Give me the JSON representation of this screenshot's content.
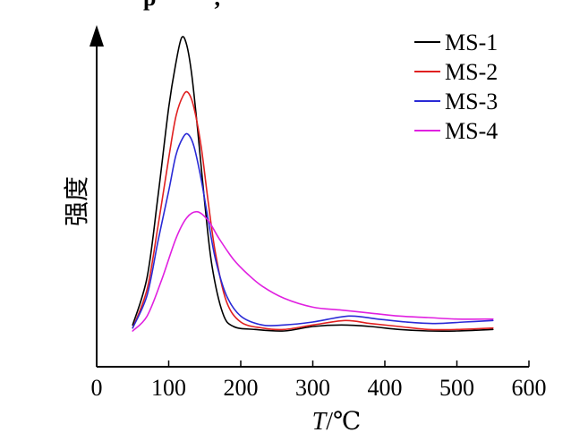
{
  "header_fragment": "p          ,",
  "chart_data": {
    "type": "line",
    "xlabel_italic": "T",
    "xlabel_unit": "/℃",
    "ylabel": "强度",
    "xlim": [
      0,
      600
    ],
    "ylim": [
      0,
      1
    ],
    "xticks": [
      "0",
      "100",
      "200",
      "300",
      "400",
      "500",
      "600"
    ],
    "legend_position": "top-right",
    "grid": false,
    "series": [
      {
        "name": "MS-1",
        "color": "#000000",
        "x": [
          50,
          70,
          85,
          100,
          110,
          118,
          125,
          132,
          140,
          150,
          160,
          175,
          190,
          220,
          260,
          300,
          340,
          380,
          420,
          460,
          500,
          550
        ],
        "y": [
          0.02,
          0.18,
          0.45,
          0.75,
          0.9,
          0.985,
          0.96,
          0.86,
          0.68,
          0.43,
          0.22,
          0.06,
          0.015,
          0.005,
          0.0,
          0.015,
          0.02,
          0.015,
          0.005,
          0.0,
          0.0,
          0.005
        ]
      },
      {
        "name": "MS-2",
        "color": "#e02020",
        "x": [
          50,
          70,
          85,
          100,
          110,
          120,
          127,
          135,
          145,
          155,
          165,
          180,
          200,
          230,
          260,
          300,
          345,
          380,
          420,
          460,
          500,
          550
        ],
        "y": [
          0.01,
          0.14,
          0.35,
          0.58,
          0.72,
          0.79,
          0.8,
          0.75,
          0.62,
          0.43,
          0.26,
          0.1,
          0.03,
          0.01,
          0.005,
          0.02,
          0.035,
          0.025,
          0.015,
          0.005,
          0.005,
          0.01
        ]
      },
      {
        "name": "MS-3",
        "color": "#2a2ad6",
        "x": [
          50,
          70,
          85,
          100,
          110,
          120,
          127,
          135,
          145,
          155,
          165,
          180,
          200,
          230,
          260,
          300,
          350,
          390,
          430,
          470,
          510,
          550
        ],
        "y": [
          0.01,
          0.12,
          0.3,
          0.47,
          0.59,
          0.65,
          0.66,
          0.62,
          0.51,
          0.37,
          0.24,
          0.12,
          0.05,
          0.02,
          0.02,
          0.03,
          0.05,
          0.04,
          0.03,
          0.025,
          0.03,
          0.035
        ]
      },
      {
        "name": "MS-4",
        "color": "#e020e0",
        "x": [
          50,
          70,
          90,
          110,
          125,
          140,
          155,
          170,
          190,
          210,
          230,
          260,
          300,
          340,
          380,
          420,
          460,
          500,
          550
        ],
        "y": [
          0.0,
          0.05,
          0.17,
          0.31,
          0.38,
          0.4,
          0.37,
          0.31,
          0.24,
          0.19,
          0.15,
          0.11,
          0.08,
          0.07,
          0.06,
          0.05,
          0.045,
          0.04,
          0.04
        ]
      }
    ]
  }
}
